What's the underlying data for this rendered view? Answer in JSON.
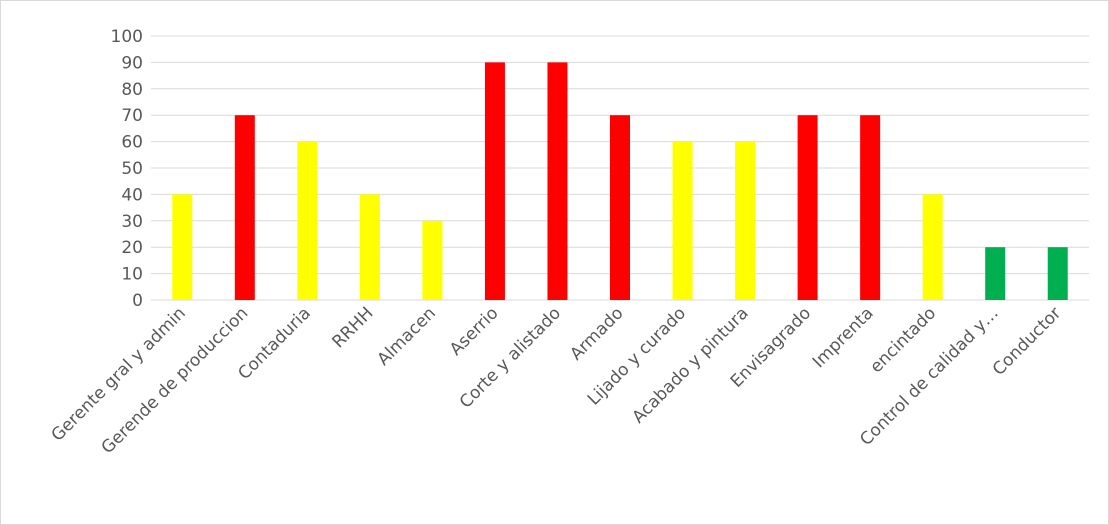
{
  "chart_data": {
    "type": "bar",
    "title": "",
    "xlabel": "",
    "ylabel": "",
    "ylim": [
      0,
      100
    ],
    "ytick_step": 10,
    "grid": true,
    "legend": "none",
    "categories": [
      "Gerente gral y admin",
      "Gerende de produccion",
      "Contaduria",
      "RRHH",
      "Almacen",
      "Aserrio",
      "Corte y alistado",
      "Armado",
      "Lijado y curado",
      "Acabado y pintura",
      "Envisagrado",
      "Imprenta",
      "encintado",
      "Control de calidad y…",
      "Conductor"
    ],
    "values": [
      40,
      70,
      60,
      40,
      30,
      90,
      90,
      70,
      60,
      60,
      70,
      70,
      40,
      20,
      20
    ],
    "bar_colors": [
      "#ffff00",
      "#ff0000",
      "#ffff00",
      "#ffff00",
      "#ffff00",
      "#ff0000",
      "#ff0000",
      "#ff0000",
      "#ffff00",
      "#ffff00",
      "#ff0000",
      "#ff0000",
      "#ffff00",
      "#00b050",
      "#00b050"
    ],
    "colors": {
      "gridline": "#d9d9d9",
      "axis": "#d9d9d9",
      "text": "#595959"
    }
  }
}
